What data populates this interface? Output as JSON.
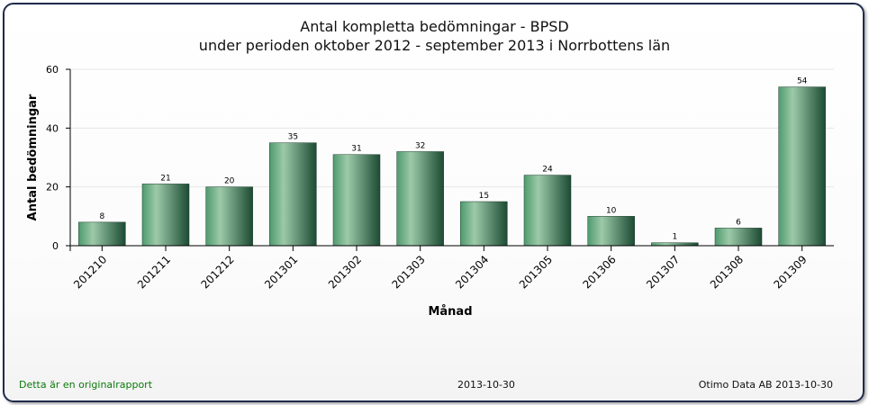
{
  "chart_data": {
    "type": "bar",
    "title": "Antal kompletta bedömningar - BPSD",
    "subtitle": "under perioden oktober 2012 - september 2013 i Norrbottens län",
    "xlabel": "Månad",
    "ylabel": "Antal bedömningar",
    "ylim": [
      0,
      60
    ],
    "yticks": [
      0,
      20,
      40,
      60
    ],
    "categories": [
      "201210",
      "201211",
      "201212",
      "201301",
      "201302",
      "201303",
      "201304",
      "201305",
      "201306",
      "201307",
      "201308",
      "201309"
    ],
    "values": [
      8,
      21,
      20,
      35,
      31,
      32,
      15,
      24,
      10,
      1,
      6,
      54
    ],
    "bar_color": "#3a8a5c",
    "grid": true,
    "data_labels": true
  },
  "footer": {
    "original_note": "Detta är en originalrapport",
    "date": "2013-10-30",
    "source": "Otimo Data AB 2013-10-30"
  }
}
